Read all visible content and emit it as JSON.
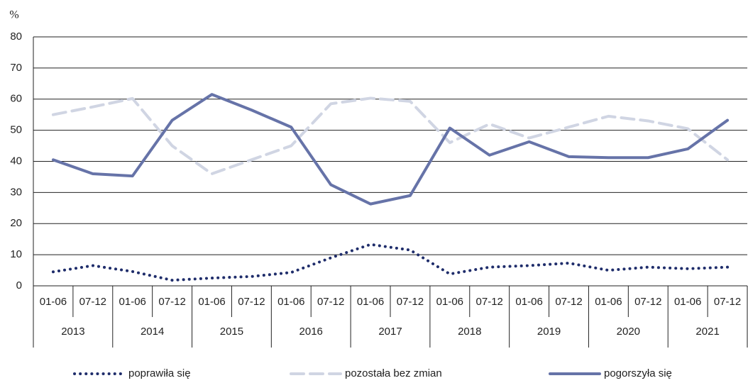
{
  "chart_data": {
    "type": "line",
    "y_axis_label": "%",
    "categories": [
      "01-06",
      "07-12",
      "01-06",
      "07-12",
      "01-06",
      "07-12",
      "01-06",
      "07-12",
      "01-06",
      "07-12",
      "01-06",
      "07-12",
      "01-06",
      "07-12",
      "01-06",
      "07-12",
      "01-06",
      "07-12"
    ],
    "category_groups": [
      "2013",
      "2014",
      "2015",
      "2016",
      "2017",
      "2018",
      "2019",
      "2020",
      "2021"
    ],
    "ylim": [
      0,
      80
    ],
    "yticks": [
      0,
      10,
      20,
      30,
      40,
      50,
      60,
      70,
      80
    ],
    "series": [
      {
        "name": "poprawiła się",
        "color": "#1f2d6b",
        "style": "dotted",
        "values": [
          4.5,
          6.5,
          4.6,
          1.8,
          2.5,
          3,
          4.3,
          9,
          13.3,
          11.5,
          3.8,
          6,
          6.5,
          7.3,
          5,
          6,
          5.5,
          6
        ]
      },
      {
        "name": "pozostała bez zmian",
        "color": "#d0d5e3",
        "style": "dashed",
        "values": [
          55,
          57.5,
          60.2,
          45,
          36,
          40.5,
          45,
          58.5,
          60.3,
          59.3,
          46,
          52,
          47.5,
          51,
          54.5,
          53,
          50.5,
          40.5
        ]
      },
      {
        "name": "pogorszyła się",
        "color": "#6673a8",
        "style": "solid",
        "values": [
          40.5,
          36,
          35.3,
          53.2,
          61.5,
          56.5,
          51,
          32.5,
          26.3,
          29,
          50.7,
          42,
          46.3,
          41.5,
          41.2,
          41.2,
          44,
          53.2
        ]
      }
    ]
  }
}
